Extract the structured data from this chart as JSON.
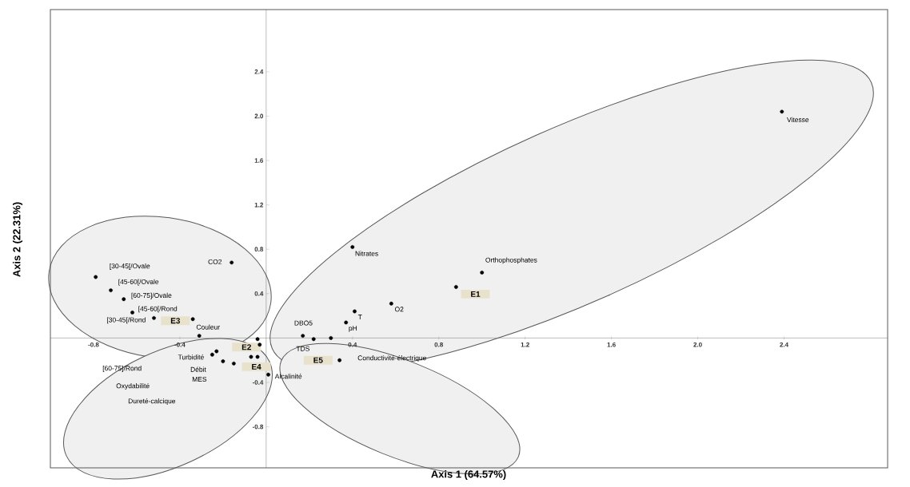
{
  "chart_data": {
    "type": "scatter",
    "xlabel": "Axis 1 (64.57%)",
    "ylabel": "Axis 2 (22.31%)",
    "color": "#000000",
    "marker": "circle",
    "xlim": [
      -1.0,
      2.88
    ],
    "ylim": [
      -1.17,
      2.96
    ],
    "xticks": [
      -0.8,
      -0.4,
      0.4,
      0.8,
      1.2,
      1.6,
      {
        "value": 2,
        "label": "2.0"
      },
      2.4
    ],
    "yticks": [
      -0.8,
      -0.4,
      0.4,
      0.8,
      1.2,
      1.6,
      {
        "value": 2,
        "label": "2.0"
      },
      2.4
    ],
    "x": [
      2.39,
      1.0,
      0.88,
      0.4,
      0.58,
      0.41,
      0.37,
      0.17,
      0.22,
      0.3,
      0.34,
      0.01,
      -0.16,
      -0.79,
      -0.72,
      -0.66,
      -0.62,
      -0.52,
      -0.34,
      -0.31,
      -0.04,
      -0.03,
      -0.04,
      -0.07,
      -0.15,
      -0.2,
      -0.23,
      -0.25
    ],
    "values": [
      2.04,
      0.59,
      0.46,
      0.82,
      0.31,
      0.24,
      0.14,
      0.02,
      -0.01,
      0.0,
      -0.2,
      -0.33,
      0.68,
      0.55,
      0.43,
      0.35,
      0.23,
      0.18,
      0.17,
      0.02,
      -0.01,
      -0.06,
      -0.17,
      -0.17,
      -0.23,
      -0.21,
      -0.12,
      -0.15
    ],
    "annotations": [
      {
        "text": "Vitesse",
        "x": 2.39,
        "y": 2.04
      },
      {
        "text": "Orthophosphates",
        "x": 1.0,
        "y": 0.59
      },
      {
        "text": "E1",
        "x": 0.88,
        "y": 0.46
      },
      {
        "text": "Nitrates",
        "x": 0.4,
        "y": 0.82
      },
      {
        "text": "O2",
        "x": 0.58,
        "y": 0.31
      },
      {
        "text": "T",
        "x": 0.41,
        "y": 0.24
      },
      {
        "text": "pH",
        "x": 0.37,
        "y": 0.14
      },
      {
        "text": "DBO5",
        "x": 0.17,
        "y": 0.02
      },
      {
        "text": "TDS",
        "x": 0.22,
        "y": -0.01
      },
      "Conductivité-électrique",
      {
        "text": "E5",
        "x": 0.34,
        "y": -0.2
      },
      {
        "text": "Alcalinité",
        "x": 0.01,
        "y": -0.33
      },
      {
        "text": "CO2",
        "x": -0.16,
        "y": 0.68
      },
      {
        "text": "[30-45[/Ovale",
        "x": -0.79,
        "y": 0.55
      },
      {
        "text": "[45-60[/Ovale",
        "x": -0.72,
        "y": 0.43
      },
      {
        "text": "[60-75]/Ovale",
        "x": -0.66,
        "y": 0.35
      },
      {
        "text": "[45-60[/Rond",
        "x": -0.62,
        "y": 0.23
      },
      {
        "text": "[30-45[/Rond",
        "x": -0.52,
        "y": 0.18
      },
      {
        "text": "E3",
        "x": -0.34,
        "y": 0.17
      },
      {
        "text": "Couleur",
        "x": -0.31,
        "y": 0.02
      },
      {
        "text": "E2",
        "x": -0.04,
        "y": -0.01
      },
      "Dureté-calcique",
      "Oxydabilité",
      "MES",
      {
        "text": "E4",
        "x": -0.15,
        "y": -0.23
      },
      {
        "text": "Débit",
        "x": -0.2,
        "y": -0.21
      },
      "[60-75]/Rond",
      {
        "text": "Turbidité",
        "x": -0.25,
        "y": -0.15
      }
    ]
  }
}
